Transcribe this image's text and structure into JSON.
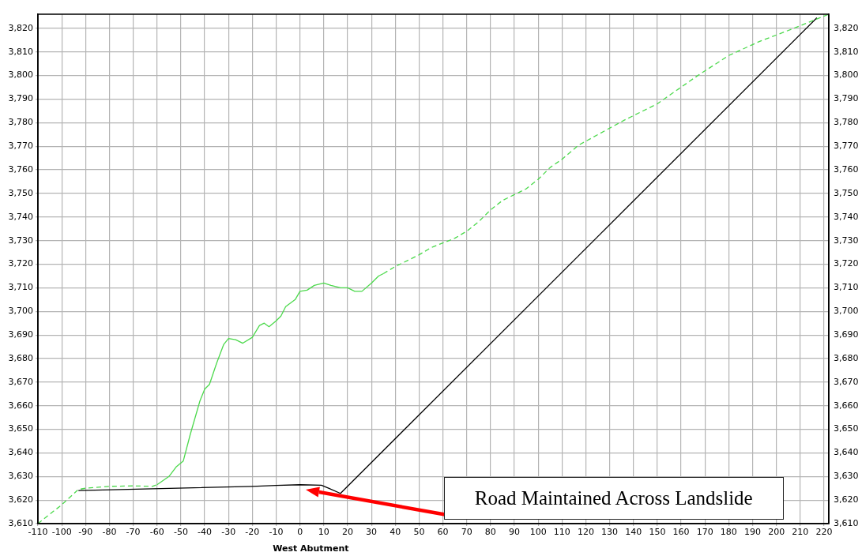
{
  "chart_data": {
    "type": "line",
    "xlabel": "West Abutment",
    "xlim": [
      -110,
      222
    ],
    "xticks": [
      -110,
      -100,
      -90,
      -80,
      -70,
      -60,
      -50,
      -40,
      -30,
      -20,
      -10,
      0,
      10,
      20,
      30,
      40,
      50,
      60,
      70,
      80,
      90,
      100,
      110,
      120,
      130,
      140,
      150,
      160,
      170,
      180,
      190,
      200,
      210,
      220
    ],
    "ylim": [
      3610,
      3826
    ],
    "yticks": [
      {
        "value": 3610,
        "label": "3,610"
      },
      {
        "value": 3620,
        "label": "3,620"
      },
      {
        "value": 3630,
        "label": "3,630"
      },
      {
        "value": 3640,
        "label": "3,640"
      },
      {
        "value": 3650,
        "label": "3,650"
      },
      {
        "value": 3660,
        "label": "3,660"
      },
      {
        "value": 3670,
        "label": "3,670"
      },
      {
        "value": 3680,
        "label": "3,680"
      },
      {
        "value": 3690,
        "label": "3,690"
      },
      {
        "value": 3700,
        "label": "3,700"
      },
      {
        "value": 3710,
        "label": "3,710"
      },
      {
        "value": 3720,
        "label": "3,720"
      },
      {
        "value": 3730,
        "label": "3,730"
      },
      {
        "value": 3740,
        "label": "3,740"
      },
      {
        "value": 3750,
        "label": "3,750"
      },
      {
        "value": 3760,
        "label": "3,760"
      },
      {
        "value": 3770,
        "label": "3,770"
      },
      {
        "value": 3780,
        "label": "3,780"
      },
      {
        "value": 3790,
        "label": "3,790"
      },
      {
        "value": 3800,
        "label": "3,800"
      },
      {
        "value": 3810,
        "label": "3,810"
      },
      {
        "value": 3820,
        "label": "3,820"
      }
    ],
    "y2lim": [
      3610,
      3826
    ],
    "y2ticks": [
      {
        "value": 3610,
        "label": "3,610"
      },
      {
        "value": 3620,
        "label": "3,620"
      },
      {
        "value": 3630,
        "label": "3,630"
      },
      {
        "value": 3640,
        "label": "3,640"
      },
      {
        "value": 3650,
        "label": "3,650"
      },
      {
        "value": 3660,
        "label": "3,660"
      },
      {
        "value": 3670,
        "label": "3,670"
      },
      {
        "value": 3680,
        "label": "3,680"
      },
      {
        "value": 3690,
        "label": "3,690"
      },
      {
        "value": 3700,
        "label": "3,700"
      },
      {
        "value": 3710,
        "label": "3,710"
      },
      {
        "value": 3720,
        "label": "3,720"
      },
      {
        "value": 3730,
        "label": "3,730"
      },
      {
        "value": 3740,
        "label": "3,740"
      },
      {
        "value": 3750,
        "label": "3,750"
      },
      {
        "value": 3760,
        "label": "3,760"
      },
      {
        "value": 3770,
        "label": "3,770"
      },
      {
        "value": 3780,
        "label": "3,780"
      },
      {
        "value": 3790,
        "label": "3,790"
      },
      {
        "value": 3800,
        "label": "3,800"
      },
      {
        "value": 3810,
        "label": "3,810"
      },
      {
        "value": 3820,
        "label": "3,820"
      }
    ],
    "grid": true,
    "legend": false,
    "marker": "none",
    "series": [
      {
        "color": "#4cd94c",
        "line_style": "dashed",
        "x": [
          -110,
          -100,
          -93,
          -90,
          -80,
          -70,
          -62,
          -60
        ],
        "values": [
          3610,
          3618,
          3624.5,
          3625,
          3625.8,
          3626,
          3625.8,
          3626.5
        ]
      },
      {
        "color": "#4cd94c",
        "line_style": "solid",
        "x": [
          -60,
          -55,
          -52,
          -49,
          -46,
          -42,
          -40,
          -38,
          -35,
          -32,
          -30,
          -27,
          -24,
          -20,
          -17,
          -15,
          -13,
          -10,
          -8,
          -6,
          -2,
          0,
          3,
          6,
          10,
          13,
          17,
          20,
          23,
          26,
          30,
          33,
          35
        ],
        "values": [
          3626.5,
          3630,
          3634,
          3636.5,
          3648,
          3662,
          3667,
          3669,
          3678,
          3686,
          3688.5,
          3688,
          3686.5,
          3689,
          3694,
          3695,
          3693.5,
          3696,
          3698,
          3702,
          3705,
          3708.5,
          3709,
          3711,
          3712,
          3711,
          3710,
          3710,
          3708.5,
          3708.5,
          3712,
          3715,
          3716
        ]
      },
      {
        "color": "#4cd94c",
        "line_style": "dashed",
        "x": [
          35,
          40,
          45,
          50,
          55,
          60,
          65,
          70,
          75,
          80,
          85,
          90,
          95,
          100,
          105,
          110,
          117,
          136,
          150,
          167,
          180,
          193,
          206,
          222
        ],
        "values": [
          3716,
          3719,
          3721.5,
          3724,
          3727,
          3729,
          3731,
          3734,
          3738,
          3743,
          3747,
          3749.5,
          3752,
          3756,
          3761,
          3764.5,
          3770.5,
          3781,
          3788,
          3800,
          3808.5,
          3814.5,
          3819.5,
          3826
        ]
      },
      {
        "color": "#000000",
        "line_style": "solid",
        "x": [
          -93,
          -20,
          -10,
          0,
          9,
          12,
          17,
          217
        ],
        "values": [
          3624,
          3625.8,
          3626.2,
          3626.5,
          3626.3,
          3625,
          3622.8,
          3824.5
        ]
      }
    ],
    "annotations": [
      "Road Maintained Across Landslide"
    ]
  }
}
